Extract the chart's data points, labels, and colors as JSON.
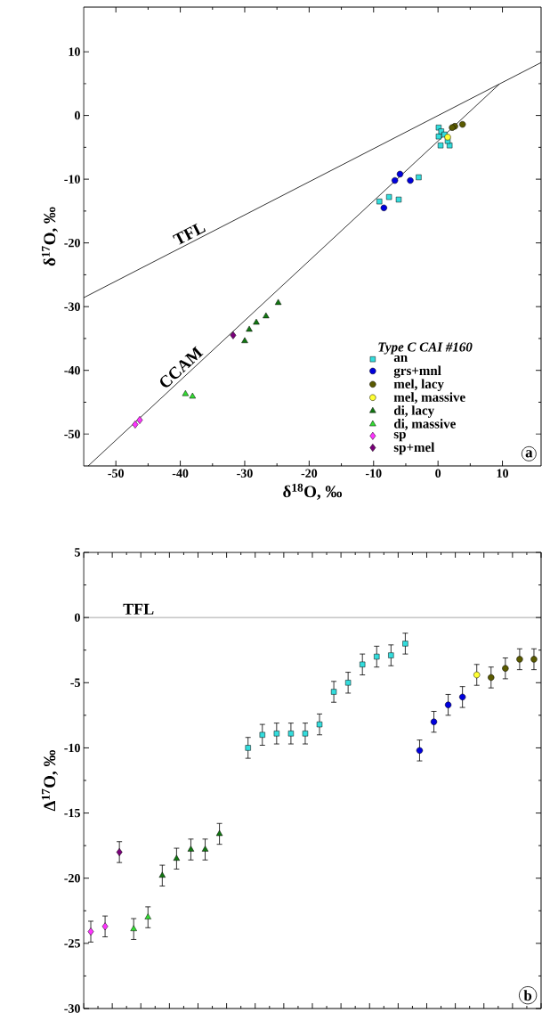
{
  "chart_data": [
    {
      "type": "scatter",
      "xlabel": "δ$^{18}$O, ‰",
      "ylabel": "δ$^{17}$O, ‰",
      "legend_title": "Type C CAI #160",
      "legend": "bottom right",
      "xlim": [
        -55,
        16
      ],
      "ylim": [
        -55,
        17
      ],
      "xticks": [
        -50,
        -40,
        -30,
        -20,
        -10,
        0,
        10
      ],
      "yticks": [
        -50,
        -40,
        -30,
        -20,
        -10,
        0,
        10
      ],
      "annotations": [
        "a"
      ],
      "series": [
        {
          "name": "TFL",
          "type": "line",
          "color": "#000000",
          "x": [
            -55,
            16
          ],
          "values": [
            -28.6,
            8.3
          ]
        },
        {
          "name": "CCAM",
          "type": "line",
          "color": "#000000",
          "x": [
            -54.3,
            9.5
          ],
          "values": [
            -55,
            4.9
          ]
        },
        {
          "name": "an",
          "marker": "square",
          "color": "#33dddd",
          "x": [
            0.1,
            0.1,
            0.4,
            1.8,
            0.5,
            1.0,
            1.5,
            -3.0,
            -7.6,
            -6.1,
            -9.1
          ],
          "values": [
            -1.9,
            -3.3,
            -4.7,
            -4.7,
            -2.5,
            -3.0,
            -4.0,
            -9.7,
            -12.8,
            -13.2,
            -13.5
          ]
        },
        {
          "name": "grs+mnl",
          "marker": "circle",
          "color": "#0000dd",
          "x": [
            -5.9,
            -6.7,
            -4.3,
            -8.4
          ],
          "values": [
            -9.2,
            -10.2,
            -10.2,
            -14.5
          ]
        },
        {
          "name": "mel, lacy",
          "marker": "circle",
          "color": "#5a5a00",
          "x": [
            3.8,
            2.6,
            2.2
          ],
          "values": [
            -1.4,
            -1.7,
            -1.9
          ]
        },
        {
          "name": "mel, massive",
          "marker": "circle",
          "color": "#ffff33",
          "x": [
            1.5
          ],
          "values": [
            -3.4
          ]
        },
        {
          "name": "di, lacy",
          "marker": "triangle",
          "color": "#117711",
          "x": [
            -24.8,
            -26.7,
            -28.2,
            -29.3,
            -30.0
          ],
          "values": [
            -29.4,
            -31.5,
            -32.5,
            -33.6,
            -35.4
          ]
        },
        {
          "name": "di, massive",
          "marker": "triangle",
          "color": "#33dd33",
          "x": [
            -39.2,
            -38.1
          ],
          "values": [
            -43.7,
            -44.1
          ]
        },
        {
          "name": "sp",
          "marker": "diamond",
          "color": "#ff33ff",
          "x": [
            -47.0,
            -46.3
          ],
          "values": [
            -48.5,
            -47.8
          ]
        },
        {
          "name": "sp+mel",
          "marker": "diamond",
          "color": "#7a007a",
          "x": [
            -31.8
          ],
          "values": [
            -34.5
          ]
        }
      ]
    },
    {
      "type": "scatter",
      "ylabel": "Δ$^{17}$O, ‰",
      "ylim": [
        -30,
        5
      ],
      "yticks": [
        -30,
        -25,
        -20,
        -15,
        -10,
        -5,
        0,
        5
      ],
      "tick_labels": "y",
      "annotations": [
        "b"
      ],
      "ref_lines": [
        {
          "axis": "y",
          "value": 0,
          "label": "TFL"
        }
      ],
      "categories": [
        null,
        null,
        null,
        null,
        null,
        null,
        null,
        null,
        null,
        null,
        null,
        null,
        null,
        null,
        null,
        null,
        null,
        null,
        null,
        null,
        null,
        null,
        null,
        null,
        null,
        null,
        null,
        null,
        null,
        null,
        null,
        null
      ],
      "series": [
        {
          "marker": "square",
          "color": "#33dddd",
          "values": [
            null,
            null,
            null,
            null,
            null,
            null,
            null,
            null,
            null,
            null,
            null,
            -10.0,
            -9.0,
            -8.9,
            -8.9,
            -8.9,
            -8.2,
            -5.7,
            -5.0,
            -3.6,
            -3.0,
            -2.9,
            -2.0,
            null,
            null,
            null,
            null,
            null,
            null,
            null,
            null,
            null
          ],
          "errors": [
            null,
            null,
            null,
            null,
            null,
            null,
            null,
            null,
            null,
            null,
            null,
            0.8,
            0.8,
            0.8,
            0.8,
            0.8,
            0.8,
            0.8,
            0.8,
            0.8,
            0.8,
            0.8,
            0.8,
            null,
            null,
            null,
            null,
            null,
            null,
            null,
            null,
            null
          ]
        },
        {
          "marker": "circle",
          "color": "#0000dd",
          "values": [
            null,
            null,
            null,
            null,
            null,
            null,
            null,
            null,
            null,
            null,
            null,
            null,
            null,
            null,
            null,
            null,
            null,
            null,
            null,
            null,
            null,
            null,
            null,
            -10.2,
            -8.0,
            -6.7,
            -6.1,
            null,
            null,
            null,
            null,
            null
          ],
          "errors": [
            null,
            null,
            null,
            null,
            null,
            null,
            null,
            null,
            null,
            null,
            null,
            null,
            null,
            null,
            null,
            null,
            null,
            null,
            null,
            null,
            null,
            null,
            null,
            0.8,
            0.8,
            0.8,
            0.8,
            null,
            null,
            null,
            null,
            null
          ]
        },
        {
          "marker": "circle",
          "color": "#5a5a00",
          "values": [
            null,
            null,
            null,
            null,
            null,
            null,
            null,
            null,
            null,
            null,
            null,
            null,
            null,
            null,
            null,
            null,
            null,
            null,
            null,
            null,
            null,
            null,
            null,
            null,
            null,
            null,
            null,
            null,
            -4.6,
            -3.9,
            -3.2,
            -3.2
          ],
          "errors": [
            null,
            null,
            null,
            null,
            null,
            null,
            null,
            null,
            null,
            null,
            null,
            null,
            null,
            null,
            null,
            null,
            null,
            null,
            null,
            null,
            null,
            null,
            null,
            null,
            null,
            null,
            null,
            null,
            0.8,
            0.8,
            0.8,
            0.8
          ]
        },
        {
          "marker": "circle",
          "color": "#ffff33",
          "values": [
            null,
            null,
            null,
            null,
            null,
            null,
            null,
            null,
            null,
            null,
            null,
            null,
            null,
            null,
            null,
            null,
            null,
            null,
            null,
            null,
            null,
            null,
            null,
            null,
            null,
            null,
            null,
            -4.4,
            null,
            null,
            null,
            null
          ],
          "errors": [
            null,
            null,
            null,
            null,
            null,
            null,
            null,
            null,
            null,
            null,
            null,
            null,
            null,
            null,
            null,
            null,
            null,
            null,
            null,
            null,
            null,
            null,
            null,
            null,
            null,
            null,
            null,
            0.8,
            null,
            null,
            null,
            null
          ]
        },
        {
          "marker": "triangle",
          "color": "#117711",
          "values": [
            null,
            null,
            null,
            null,
            null,
            -19.8,
            -18.5,
            -17.8,
            -17.8,
            -16.6,
            null,
            null,
            null,
            null,
            null,
            null,
            null,
            null,
            null,
            null,
            null,
            null,
            null,
            null,
            null,
            null,
            null,
            null,
            null,
            null,
            null,
            null
          ],
          "errors": [
            null,
            null,
            null,
            null,
            null,
            0.8,
            0.8,
            0.8,
            0.8,
            0.8,
            null,
            null,
            null,
            null,
            null,
            null,
            null,
            null,
            null,
            null,
            null,
            null,
            null,
            null,
            null,
            null,
            null,
            null,
            null,
            null,
            null,
            null
          ]
        },
        {
          "marker": "triangle",
          "color": "#33dd33",
          "values": [
            null,
            null,
            null,
            -23.9,
            -23.0,
            null,
            null,
            null,
            null,
            null,
            null,
            null,
            null,
            null,
            null,
            null,
            null,
            null,
            null,
            null,
            null,
            null,
            null,
            null,
            null,
            null,
            null,
            null,
            null,
            null,
            null,
            null
          ],
          "errors": [
            null,
            null,
            null,
            0.8,
            0.8,
            null,
            null,
            null,
            null,
            null,
            null,
            null,
            null,
            null,
            null,
            null,
            null,
            null,
            null,
            null,
            null,
            null,
            null,
            null,
            null,
            null,
            null,
            null,
            null,
            null,
            null,
            null
          ]
        },
        {
          "marker": "diamond",
          "color": "#ff33ff",
          "values": [
            -24.1,
            -23.7,
            null,
            null,
            null,
            null,
            null,
            null,
            null,
            null,
            null,
            null,
            null,
            null,
            null,
            null,
            null,
            null,
            null,
            null,
            null,
            null,
            null,
            null,
            null,
            null,
            null,
            null,
            null,
            null,
            null,
            null
          ],
          "errors": [
            0.8,
            0.8,
            null,
            null,
            null,
            null,
            null,
            null,
            null,
            null,
            null,
            null,
            null,
            null,
            null,
            null,
            null,
            null,
            null,
            null,
            null,
            null,
            null,
            null,
            null,
            null,
            null,
            null,
            null,
            null,
            null,
            null
          ]
        },
        {
          "marker": "diamond",
          "color": "#7a007a",
          "values": [
            null,
            null,
            -18.0,
            null,
            null,
            null,
            null,
            null,
            null,
            null,
            null,
            null,
            null,
            null,
            null,
            null,
            null,
            null,
            null,
            null,
            null,
            null,
            null,
            null,
            null,
            null,
            null,
            null,
            null,
            null,
            null,
            null
          ],
          "errors": [
            null,
            null,
            0.8,
            null,
            null,
            null,
            null,
            null,
            null,
            null,
            null,
            null,
            null,
            null,
            null,
            null,
            null,
            null,
            null,
            null,
            null,
            null,
            null,
            null,
            null,
            null,
            null,
            null,
            null,
            null,
            null,
            null
          ]
        }
      ]
    }
  ]
}
